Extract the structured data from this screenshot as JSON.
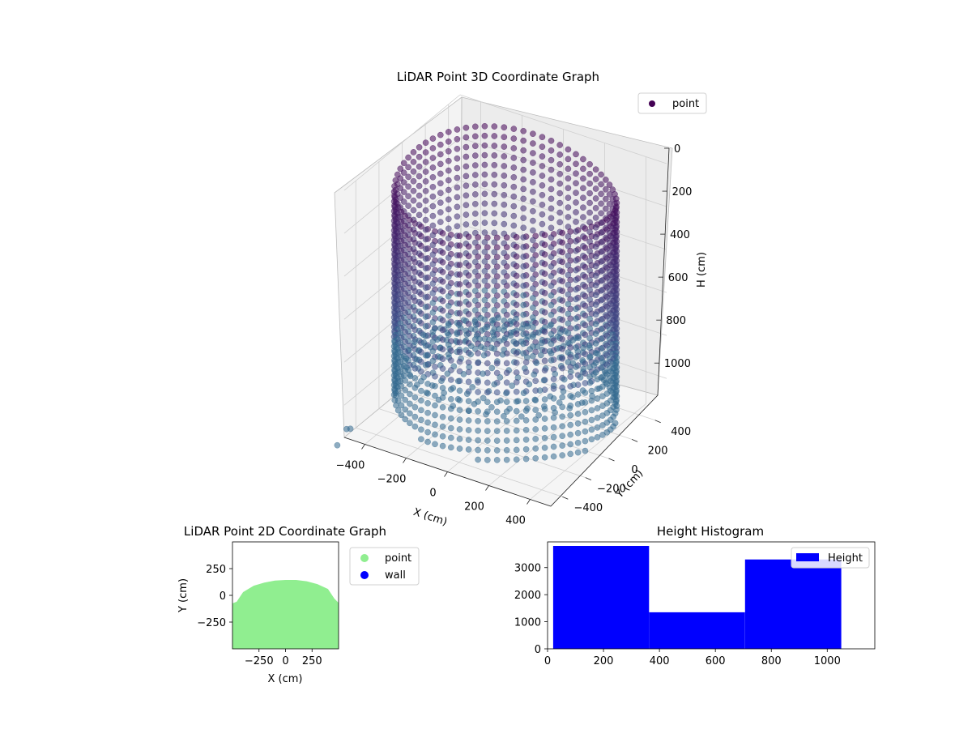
{
  "chart_data": [
    {
      "type": "scatter",
      "projection": "3d",
      "title": "LiDAR Point 3D Coordinate Graph",
      "xlabel": "X (cm)",
      "ylabel": "Y (cm)",
      "zlabel": "H (cm)",
      "x_ticks": [
        -400,
        -200,
        0,
        200,
        400
      ],
      "y_ticks": [
        -400,
        -200,
        0,
        200,
        400
      ],
      "z_ticks": [
        0,
        200,
        400,
        600,
        800,
        1000
      ],
      "xlim": [
        -500,
        500
      ],
      "ylim": [
        -500,
        500
      ],
      "zlim": [
        1150,
        0
      ],
      "z_inverted": true,
      "legend": {
        "position": "top-right",
        "entries": [
          {
            "label": "point",
            "color": "#440154"
          }
        ]
      },
      "grid": true,
      "colormap": "viridis",
      "shape": "ring of points, radius ~470 cm, heights 0-1100 cm, vertical scan columns plus a floor disk"
    },
    {
      "type": "scatter",
      "title": "LiDAR Point 2D Coordinate Graph",
      "xlabel": "X (cm)",
      "ylabel": "Y (cm)",
      "x_ticks": [
        "−250",
        "0",
        "250"
      ],
      "y_ticks": [
        "250",
        "0",
        "−250"
      ],
      "xlim": [
        -500,
        500
      ],
      "ylim": [
        -500,
        500
      ],
      "legend": {
        "position": "outside-right",
        "entries": [
          {
            "label": "point",
            "color": "#90ee90"
          },
          {
            "label": "wall",
            "color": "#0000ff"
          }
        ]
      },
      "outline": [
        [
          -500,
          -500
        ],
        [
          -500,
          -75
        ],
        [
          -460,
          -60
        ],
        [
          -400,
          30
        ],
        [
          -300,
          90
        ],
        [
          -200,
          120
        ],
        [
          -100,
          138
        ],
        [
          0,
          144
        ],
        [
          100,
          144
        ],
        [
          200,
          132
        ],
        [
          300,
          105
        ],
        [
          400,
          60
        ],
        [
          460,
          -30
        ],
        [
          500,
          -70
        ],
        [
          500,
          -500
        ]
      ]
    },
    {
      "type": "bar",
      "subtype": "histogram",
      "title": "Height Histogram",
      "x_ticks": [
        0,
        200,
        400,
        600,
        800,
        1000
      ],
      "y_ticks": [
        0,
        1000,
        2000,
        3000
      ],
      "xlim": [
        0,
        1170
      ],
      "ylim": [
        0,
        3950
      ],
      "bins": [
        {
          "start": 20,
          "end": 363,
          "count": 3800
        },
        {
          "start": 363,
          "end": 706,
          "count": 1350
        },
        {
          "start": 706,
          "end": 1050,
          "count": 3300
        }
      ],
      "color": "#0000ff",
      "legend": {
        "position": "top-right",
        "entries": [
          {
            "label": "Height",
            "color": "#0000ff"
          }
        ]
      }
    }
  ]
}
